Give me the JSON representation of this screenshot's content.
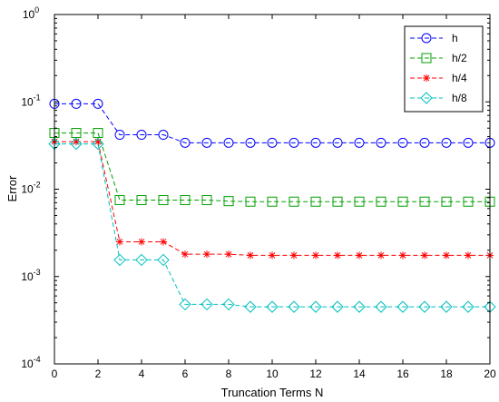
{
  "chart_data": {
    "type": "line",
    "title": "",
    "xlabel": "Truncation Terms N",
    "ylabel": "Error",
    "xlim": [
      0,
      20
    ],
    "ylim": [
      0.0001,
      1
    ],
    "yscale": "log",
    "xticks": [
      0,
      2,
      4,
      6,
      8,
      10,
      12,
      14,
      16,
      18,
      20
    ],
    "yticks": [
      {
        "value": 0.0001,
        "base": "10",
        "exp": "-4"
      },
      {
        "value": 0.001,
        "base": "10",
        "exp": "-3"
      },
      {
        "value": 0.01,
        "base": "10",
        "exp": "-2"
      },
      {
        "value": 0.1,
        "base": "10",
        "exp": "-1"
      },
      {
        "value": 1,
        "base": "10",
        "exp": "0"
      }
    ],
    "grid": false,
    "legend_position": "top-right",
    "x": [
      0,
      1,
      2,
      3,
      4,
      5,
      6,
      7,
      8,
      9,
      10,
      11,
      12,
      13,
      14,
      15,
      16,
      17,
      18,
      19,
      20
    ],
    "series": [
      {
        "name": "h",
        "color": "#0000ff",
        "marker": "circle",
        "values": [
          0.095,
          0.095,
          0.095,
          0.042,
          0.042,
          0.042,
          0.034,
          0.034,
          0.034,
          0.034,
          0.034,
          0.034,
          0.034,
          0.034,
          0.034,
          0.034,
          0.034,
          0.034,
          0.034,
          0.034,
          0.034
        ]
      },
      {
        "name": "h/2",
        "color": "#00a000",
        "marker": "square",
        "values": [
          0.044,
          0.044,
          0.044,
          0.0075,
          0.0075,
          0.0075,
          0.0075,
          0.0075,
          0.0073,
          0.0072,
          0.0072,
          0.0072,
          0.0072,
          0.0072,
          0.0072,
          0.0072,
          0.0072,
          0.0072,
          0.0072,
          0.0072,
          0.0072
        ]
      },
      {
        "name": "h/4",
        "color": "#ff0000",
        "marker": "asterisk",
        "values": [
          0.035,
          0.035,
          0.035,
          0.0025,
          0.0025,
          0.0025,
          0.0018,
          0.0018,
          0.0018,
          0.00175,
          0.00175,
          0.00175,
          0.00175,
          0.00175,
          0.00175,
          0.00175,
          0.00175,
          0.00175,
          0.00175,
          0.00175,
          0.00175
        ]
      },
      {
        "name": "h/8",
        "color": "#00bfbf",
        "marker": "diamond",
        "values": [
          0.033,
          0.033,
          0.033,
          0.00155,
          0.00155,
          0.00155,
          0.00048,
          0.00048,
          0.00048,
          0.00045,
          0.00045,
          0.00045,
          0.00045,
          0.00045,
          0.00045,
          0.00045,
          0.00045,
          0.00045,
          0.00045,
          0.00045,
          0.00045
        ]
      }
    ]
  }
}
